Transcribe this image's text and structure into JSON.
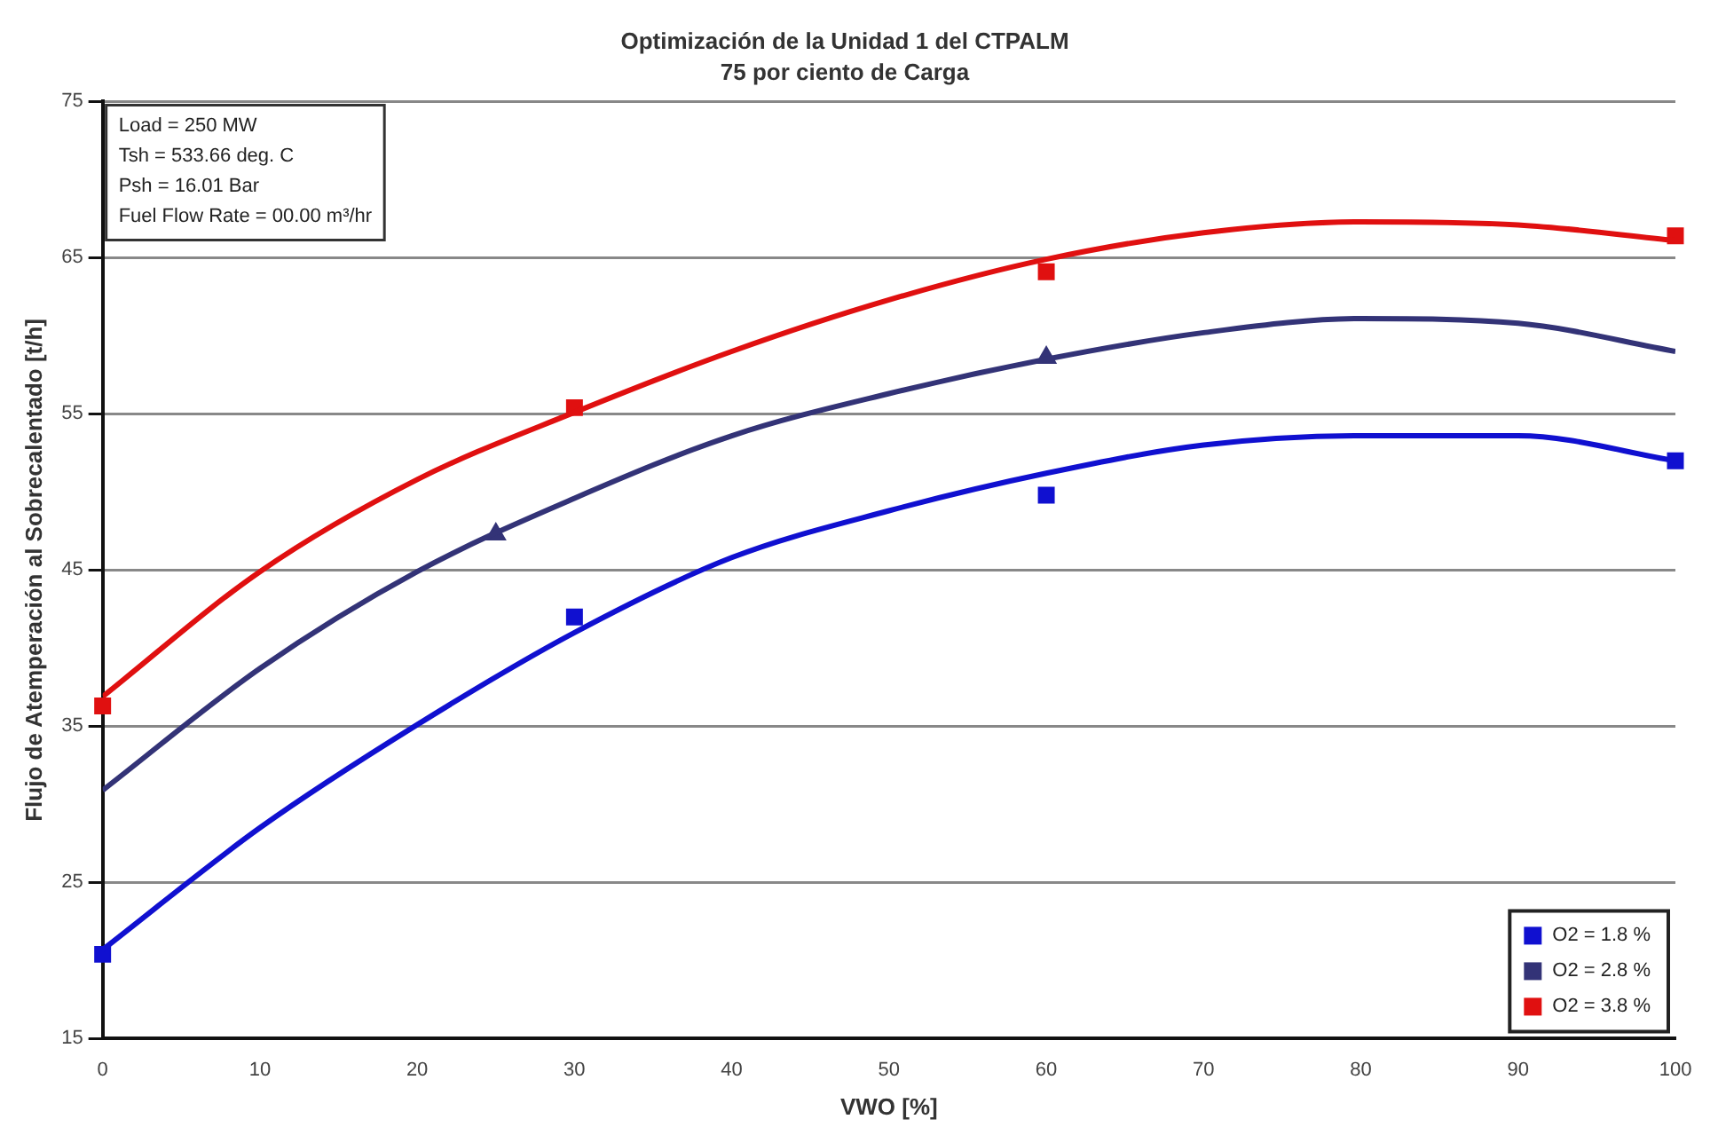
{
  "chart_data": {
    "type": "line",
    "title": "Optimización de la Unidad 1 del CTPALM",
    "subtitle": "75 por ciento de Carga",
    "xlabel": "VWO [%]",
    "ylabel": "Flujo de Atemperación al Sobrecalentado [t/h]",
    "annotations": [
      "Load = 250 MW",
      "Tsh = 533.66 deg. C",
      "Psh = 16.01 Bar",
      "Fuel Flow Rate = 00.00 m³/hr"
    ],
    "xlim": [
      0,
      100
    ],
    "xticks": [
      0,
      10,
      20,
      30,
      40,
      50,
      60,
      70,
      80,
      90,
      100
    ],
    "ylim": [
      15,
      75
    ],
    "yticks": [
      15,
      25,
      35,
      45,
      55,
      65,
      75
    ],
    "grid": "y",
    "legend": "bottom right",
    "series": [
      {
        "marker": "none",
        "color": "#1010d0",
        "x": [
          0,
          10,
          20,
          30,
          40,
          50,
          60,
          70,
          80,
          90,
          100
        ],
        "values": [
          20.7,
          28.5,
          35.1,
          41.0,
          45.8,
          48.8,
          51.2,
          53.0,
          53.6,
          53.6,
          52.0
        ]
      },
      {
        "marker": "none",
        "color": "#333377",
        "x": [
          0,
          10,
          20,
          30,
          40,
          50,
          60,
          70,
          80,
          90,
          100
        ],
        "values": [
          30.9,
          38.7,
          44.9,
          49.6,
          53.6,
          56.3,
          58.5,
          60.2,
          61.1,
          60.8,
          59.0
        ]
      },
      {
        "marker": "none",
        "color": "#e01010",
        "x": [
          0,
          10,
          20,
          30,
          40,
          50,
          60,
          70,
          80,
          90,
          100
        ],
        "values": [
          36.9,
          44.9,
          50.8,
          55.1,
          59.0,
          62.3,
          64.9,
          66.6,
          67.3,
          67.1,
          66.1
        ]
      },
      {
        "type": "scatter",
        "name": "O2 = 1.8 %",
        "marker": "square",
        "color": "#1010d0",
        "x": [
          0,
          30,
          60,
          100
        ],
        "values": [
          20.4,
          42.0,
          49.8,
          52.0
        ]
      },
      {
        "type": "scatter",
        "name": "O2 = 2.8 %",
        "marker": "triangle",
        "color": "#333377",
        "x": [
          25,
          60
        ],
        "values": [
          47.3,
          58.6
        ]
      },
      {
        "type": "scatter",
        "name": "O2 = 3.8 %",
        "marker": "square",
        "color": "#e01010",
        "x": [
          0,
          30,
          60,
          100
        ],
        "values": [
          36.3,
          55.4,
          64.1,
          66.4
        ]
      }
    ]
  }
}
